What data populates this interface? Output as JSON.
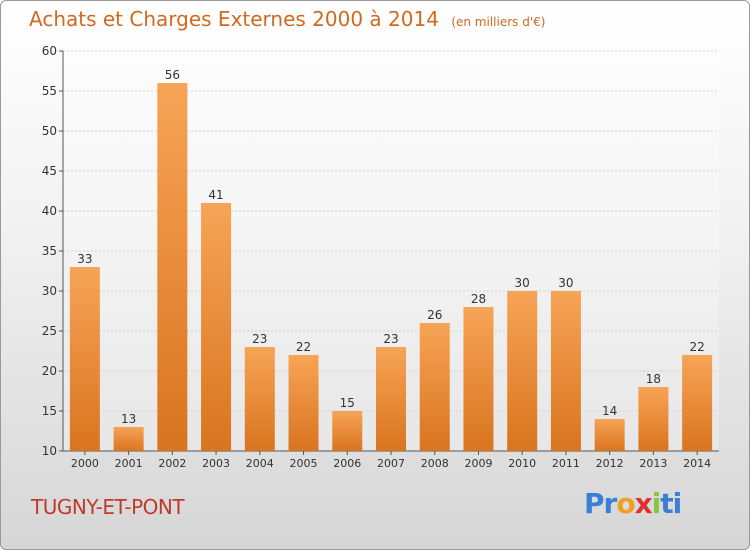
{
  "header": {
    "title": "Achats et Charges Externes 2000 à 2014",
    "subtitle": "(en milliers d'€)"
  },
  "footer": {
    "place": "TUGNY-ET-PONT",
    "logo_text": "Proxiti"
  },
  "colors": {
    "bar_top": "#f7a456",
    "bar_bottom": "#d9741f",
    "title": "#d2691e",
    "place": "#c0392b"
  },
  "chart_data": {
    "type": "bar",
    "title": "Achats et Charges Externes 2000 à 2014",
    "subtitle": "(en milliers d'€)",
    "categories": [
      "2000",
      "2001",
      "2002",
      "2003",
      "2004",
      "2005",
      "2006",
      "2007",
      "2008",
      "2009",
      "2010",
      "2011",
      "2012",
      "2013",
      "2014"
    ],
    "values": [
      33,
      13,
      56,
      41,
      23,
      22,
      15,
      23,
      26,
      28,
      30,
      30,
      14,
      18,
      22
    ],
    "ylim": [
      10,
      60
    ],
    "yticks": [
      10,
      15,
      20,
      25,
      30,
      35,
      40,
      45,
      50,
      55,
      60
    ],
    "grid": true,
    "data_labels": true
  }
}
